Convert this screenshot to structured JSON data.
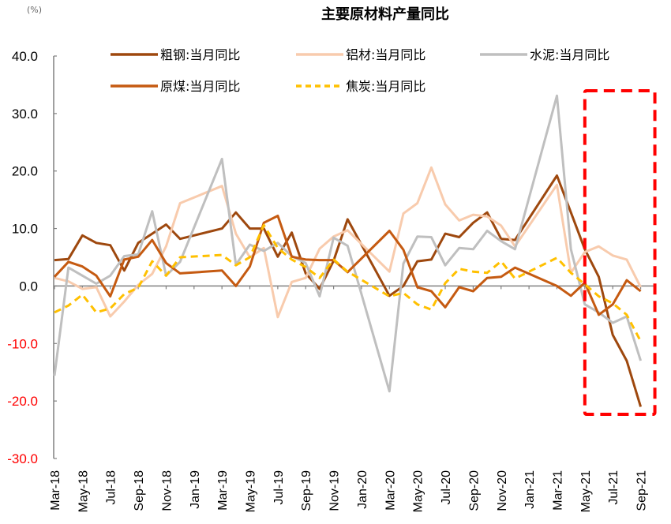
{
  "chart_data": {
    "type": "line",
    "title": "主要原材料产量同比",
    "unit_label": "(%)",
    "xlabel": "",
    "ylabel": "%",
    "ylim": [
      -30,
      40
    ],
    "yticks": [
      40,
      30,
      20,
      10,
      0,
      -10,
      -20,
      -30
    ],
    "ytick_labels": [
      "40.0",
      "30.0",
      "20.0",
      "10.0",
      "0.0",
      "-10.0",
      "-20.0",
      "-30.0"
    ],
    "negative_tick_color": "#FF0000",
    "positive_tick_color": "#000000",
    "grid": false,
    "legend_position": "top",
    "x": [
      "Mar-18",
      "Apr-18",
      "May-18",
      "Jun-18",
      "Jul-18",
      "Aug-18",
      "Sep-18",
      "Oct-18",
      "Nov-18",
      "Dec-18",
      "Jan-19",
      "Feb-19",
      "Mar-19",
      "Apr-19",
      "May-19",
      "Jun-19",
      "Jul-19",
      "Aug-19",
      "Sep-19",
      "Oct-19",
      "Nov-19",
      "Dec-19",
      "Jan-20",
      "Feb-20",
      "Mar-20",
      "Apr-20",
      "May-20",
      "Jun-20",
      "Jul-20",
      "Aug-20",
      "Sep-20",
      "Oct-20",
      "Nov-20",
      "Dec-20",
      "Jan-21",
      "Feb-21",
      "Mar-21",
      "Apr-21",
      "May-21",
      "Jun-21",
      "Jul-21",
      "Aug-21",
      "Sep-21"
    ],
    "xtick_labels": [
      "Mar-18",
      "May-18",
      "Jul-18",
      "Sep-18",
      "Nov-18",
      "Jan-19",
      "Mar-19",
      "May-19",
      "Jul-19",
      "Sep-19",
      "Nov-19",
      "Jan-20",
      "Mar-20",
      "May-20",
      "Jul-20",
      "Sep-20",
      "Nov-20",
      "Jan-21",
      "Mar-21",
      "May-21",
      "Jul-21",
      "Sep-21"
    ],
    "series": [
      {
        "name": "粗钢:当月同比",
        "color": "#9E480E",
        "dash": false,
        "values": [
          4.5,
          4.7,
          8.8,
          7.5,
          7.1,
          2.7,
          7.5,
          9.1,
          10.7,
          8.2,
          null,
          null,
          10.0,
          12.8,
          10.0,
          10.0,
          5.1,
          9.3,
          2.2,
          -0.5,
          4.4,
          11.6,
          null,
          null,
          -1.7,
          0.0,
          4.3,
          4.6,
          9.1,
          8.5,
          11.0,
          12.8,
          8.2,
          8.0,
          null,
          null,
          19.2,
          12.8,
          6.4,
          1.6,
          -8.5,
          -13.0,
          -21.0
        ]
      },
      {
        "name": "铝材:当月同比",
        "color": "#F8CBAD",
        "dash": false,
        "values": [
          1.4,
          0.8,
          -0.5,
          -0.2,
          -5.3,
          -2.7,
          0.2,
          2.1,
          6.9,
          14.4,
          null,
          null,
          17.4,
          9.1,
          5.0,
          6.6,
          -5.4,
          0.7,
          1.4,
          6.5,
          8.6,
          9.7,
          null,
          null,
          2.5,
          12.6,
          14.4,
          20.6,
          14.2,
          11.4,
          12.4,
          12.1,
          10.5,
          6.9,
          null,
          null,
          17.6,
          2.3,
          5.9,
          6.9,
          5.3,
          4.6,
          -0.2
        ]
      },
      {
        "name": "水泥:当月同比",
        "color": "#BFBFBF",
        "dash": false,
        "values": [
          -15.6,
          3.2,
          1.8,
          0.4,
          1.8,
          5.2,
          5.5,
          13.0,
          1.8,
          4.2,
          null,
          null,
          22.1,
          3.7,
          7.2,
          6.1,
          7.5,
          5.2,
          4.0,
          -1.8,
          8.4,
          7.0,
          null,
          null,
          -18.3,
          3.9,
          8.6,
          8.5,
          3.6,
          6.6,
          6.4,
          9.6,
          7.8,
          6.4,
          null,
          null,
          33.1,
          6.4,
          -3.2,
          -4.6,
          -6.4,
          -5.3,
          -13.0
        ]
      },
      {
        "name": "原煤:当月同比",
        "color": "#C55A11",
        "dash": false,
        "values": [
          1.6,
          4.2,
          3.4,
          1.8,
          -1.8,
          4.6,
          5.1,
          8.0,
          4.0,
          2.2,
          null,
          null,
          2.7,
          0.0,
          3.4,
          11.0,
          12.2,
          5.1,
          4.6,
          4.5,
          4.5,
          2.4,
          null,
          null,
          9.6,
          6.3,
          -0.2,
          -0.9,
          -3.7,
          -0.2,
          -0.9,
          1.4,
          1.6,
          3.2,
          null,
          null,
          0.0,
          -1.7,
          0.6,
          -5.0,
          -3.2,
          1.0,
          -0.9
        ]
      },
      {
        "name": "焦炭:当月同比",
        "color": "#FFC000",
        "dash": true,
        "values": [
          -4.6,
          -3.4,
          -1.5,
          -4.6,
          -3.9,
          -1.4,
          -0.3,
          4.3,
          1.8,
          5.0,
          null,
          null,
          5.4,
          3.6,
          5.0,
          10.6,
          6.6,
          4.6,
          3.3,
          1.4,
          4.6,
          2.5,
          null,
          null,
          -1.8,
          -1.2,
          -3.2,
          -4.1,
          0.5,
          3.0,
          2.5,
          2.3,
          4.3,
          1.3,
          null,
          null,
          4.9,
          2.3,
          0.3,
          -1.8,
          -3.0,
          -5.0,
          -9.6
        ]
      }
    ],
    "annotations": [
      {
        "type": "highlight-box",
        "style": "dashed",
        "color": "#FF0000",
        "covers": [
          "May-21",
          "Sep-21"
        ]
      }
    ]
  }
}
